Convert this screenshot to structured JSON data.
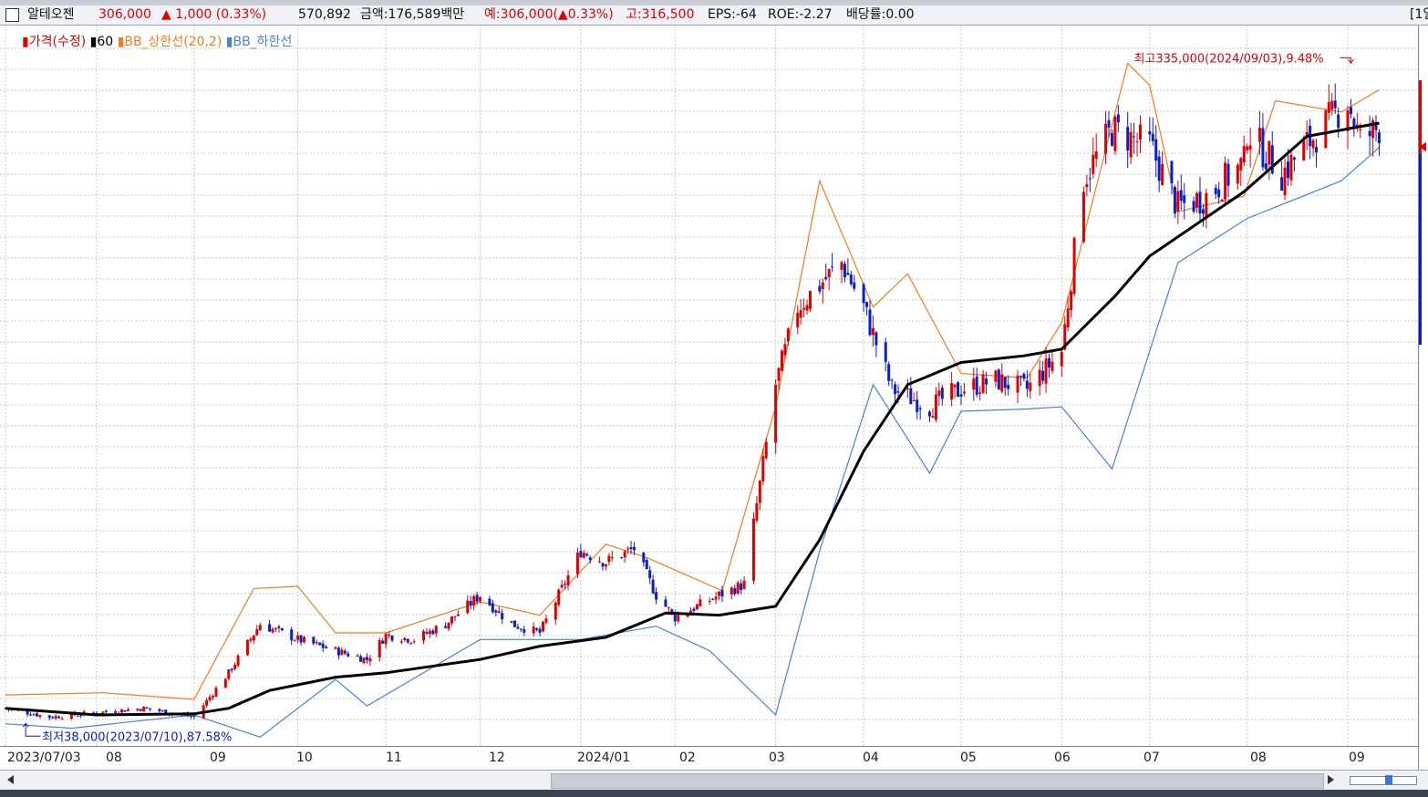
{
  "info": {
    "name": "알테오젠",
    "price": "306,000",
    "change": "▲ 1,000 (0.33%)",
    "volume": "570,892",
    "amount": "금액:176,589백만",
    "expected": "예:306,000(▲0.33%)",
    "high": "고:316,500",
    "eps": "EPS:-64",
    "roe": "ROE:-2.27",
    "dividend": "배당률:0.00",
    "right_cut": "[1일"
  },
  "legend": {
    "price": "가격(수정)",
    "ma": "60",
    "bb_upper": "BB_상한선(20,2)",
    "bb_lower": "BB_하한선"
  },
  "annotations": {
    "high": "최고335,000(2024/09/03),9.48%",
    "low": "최저38,000(2023/07/10),87.58%"
  },
  "colors": {
    "up": "#e00000",
    "down": "#0a1fcc",
    "ma": "#000000",
    "bb_upper": "#f47b20",
    "bb_lower": "#4a7fe0",
    "grid": "#c8c8c8"
  },
  "chart_data": {
    "type": "candlestick",
    "x_tick_labels": [
      "2023/07/03",
      "08",
      "09",
      "10",
      "11",
      "12",
      "2024/01",
      "02",
      "03",
      "04",
      "05",
      "06",
      "07",
      "08",
      "09"
    ],
    "x_tick_dates": [
      "2023-07-03",
      "2023-08-01",
      "2023-09-01",
      "2023-10-04",
      "2023-11-01",
      "2023-12-01",
      "2024-01-02",
      "2024-02-01",
      "2024-03-04",
      "2024-04-01",
      "2024-05-02",
      "2024-06-03",
      "2024-07-01",
      "2024-08-01",
      "2024-09-02"
    ],
    "ylim": [
      27000,
      352000
    ],
    "grid": true,
    "high_point": {
      "date": "2024-09-03",
      "value": 335000
    },
    "low_point": {
      "date": "2023-07-10",
      "value": 38000
    },
    "close": [
      [
        "2023-07-03",
        44000
      ],
      [
        "2023-07-17",
        40000
      ],
      [
        "2023-08-01",
        42000
      ],
      [
        "2023-08-16",
        44000
      ],
      [
        "2023-09-01",
        40000
      ],
      [
        "2023-09-12",
        60000
      ],
      [
        "2023-09-22",
        82000
      ],
      [
        "2023-10-04",
        75000
      ],
      [
        "2023-10-16",
        70000
      ],
      [
        "2023-10-26",
        66000
      ],
      [
        "2023-11-01",
        77000
      ],
      [
        "2023-11-10",
        75000
      ],
      [
        "2023-11-20",
        82000
      ],
      [
        "2023-12-01",
        95000
      ],
      [
        "2023-12-11",
        82000
      ],
      [
        "2023-12-20",
        78000
      ],
      [
        "2024-01-02",
        115000
      ],
      [
        "2024-01-10",
        110000
      ],
      [
        "2024-01-19",
        116000
      ],
      [
        "2024-01-26",
        95000
      ],
      [
        "2024-02-01",
        85000
      ],
      [
        "2024-02-15",
        95000
      ],
      [
        "2024-02-23",
        100000
      ],
      [
        "2024-03-04",
        190000
      ],
      [
        "2024-03-11",
        225000
      ],
      [
        "2024-03-18",
        235000
      ],
      [
        "2024-03-25",
        245000
      ],
      [
        "2024-04-01",
        225000
      ],
      [
        "2024-04-10",
        188000
      ],
      [
        "2024-04-22",
        180000
      ],
      [
        "2024-05-02",
        188000
      ],
      [
        "2024-05-13",
        192000
      ],
      [
        "2024-05-23",
        188000
      ],
      [
        "2024-06-03",
        205000
      ],
      [
        "2024-06-10",
        283000
      ],
      [
        "2024-06-19",
        305000
      ],
      [
        "2024-06-27",
        300000
      ],
      [
        "2024-07-01",
        298000
      ],
      [
        "2024-07-10",
        270000
      ],
      [
        "2024-07-19",
        275000
      ],
      [
        "2024-07-31",
        290000
      ],
      [
        "2024-08-01",
        305000
      ],
      [
        "2024-08-12",
        285000
      ],
      [
        "2024-08-21",
        300000
      ],
      [
        "2024-09-02",
        318000
      ],
      [
        "2024-09-06",
        300000
      ],
      [
        "2024-09-12",
        306000
      ]
    ],
    "ma60": [
      [
        "2023-07-03",
        44000
      ],
      [
        "2023-08-01",
        41000
      ],
      [
        "2023-09-01",
        41500
      ],
      [
        "2023-09-12",
        44000
      ],
      [
        "2023-09-25",
        52000
      ],
      [
        "2023-10-16",
        58000
      ],
      [
        "2023-11-01",
        60000
      ],
      [
        "2023-12-01",
        66000
      ],
      [
        "2023-12-20",
        72000
      ],
      [
        "2024-01-10",
        76000
      ],
      [
        "2024-01-29",
        87000
      ],
      [
        "2024-02-15",
        86000
      ],
      [
        "2024-03-04",
        90000
      ],
      [
        "2024-03-18",
        120000
      ],
      [
        "2024-04-01",
        160000
      ],
      [
        "2024-04-15",
        190000
      ],
      [
        "2024-05-02",
        200000
      ],
      [
        "2024-05-22",
        203000
      ],
      [
        "2024-06-03",
        206000
      ],
      [
        "2024-06-20",
        230000
      ],
      [
        "2024-07-01",
        248000
      ],
      [
        "2024-07-31",
        277000
      ],
      [
        "2024-08-20",
        302000
      ],
      [
        "2024-09-12",
        308000
      ]
    ],
    "bb_upper": [
      [
        "2023-07-03",
        50000
      ],
      [
        "2023-08-03",
        51000
      ],
      [
        "2023-09-01",
        48000
      ],
      [
        "2023-09-20",
        98000
      ],
      [
        "2023-10-04",
        99000
      ],
      [
        "2023-10-16",
        78000
      ],
      [
        "2023-11-01",
        78000
      ],
      [
        "2023-12-01",
        92000
      ],
      [
        "2023-12-20",
        86000
      ],
      [
        "2024-01-10",
        118000
      ],
      [
        "2024-01-23",
        112000
      ],
      [
        "2024-02-16",
        97000
      ],
      [
        "2024-03-04",
        180000
      ],
      [
        "2024-03-18",
        282000
      ],
      [
        "2024-04-04",
        225000
      ],
      [
        "2024-04-15",
        240000
      ],
      [
        "2024-05-02",
        195000
      ],
      [
        "2024-05-23",
        193000
      ],
      [
        "2024-06-03",
        218000
      ],
      [
        "2024-06-24",
        335000
      ],
      [
        "2024-07-01",
        325000
      ],
      [
        "2024-07-10",
        268000
      ],
      [
        "2024-07-31",
        275000
      ],
      [
        "2024-08-10",
        318000
      ],
      [
        "2024-08-31",
        313000
      ],
      [
        "2024-09-12",
        323000
      ]
    ],
    "bb_lower": [
      [
        "2023-07-03",
        37000
      ],
      [
        "2023-07-24",
        35000
      ],
      [
        "2023-09-01",
        41000
      ],
      [
        "2023-09-22",
        31000
      ],
      [
        "2023-10-16",
        57000
      ],
      [
        "2023-10-26",
        45000
      ],
      [
        "2023-12-01",
        75000
      ],
      [
        "2024-01-02",
        75000
      ],
      [
        "2024-01-26",
        81000
      ],
      [
        "2024-02-12",
        70000
      ],
      [
        "2024-03-04",
        41000
      ],
      [
        "2024-03-18",
        115000
      ],
      [
        "2024-04-04",
        190000
      ],
      [
        "2024-04-22",
        150000
      ],
      [
        "2024-05-02",
        178000
      ],
      [
        "2024-05-23",
        179000
      ],
      [
        "2024-06-03",
        180000
      ],
      [
        "2024-06-19",
        152000
      ],
      [
        "2024-07-10",
        245000
      ],
      [
        "2024-08-01",
        265000
      ],
      [
        "2024-08-31",
        282000
      ],
      [
        "2024-09-12",
        297000
      ]
    ]
  }
}
